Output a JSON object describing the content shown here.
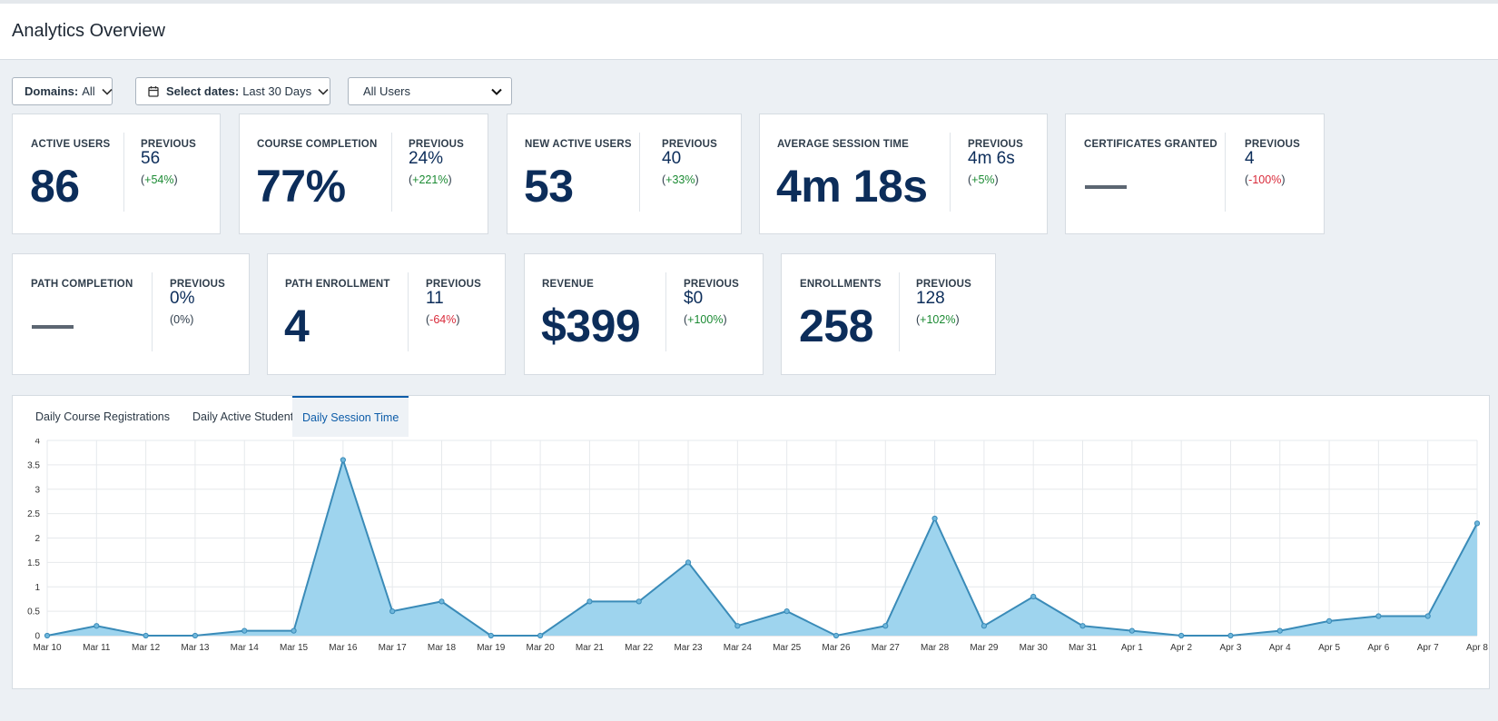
{
  "header": {
    "title": "Analytics Overview"
  },
  "filters": {
    "domains": {
      "label": "Domains:",
      "value": "All"
    },
    "dates": {
      "label": "Select dates:",
      "value": "Last 30 Days"
    },
    "users": {
      "value": "All Users"
    }
  },
  "cards": [
    {
      "label": "ACTIVE USERS",
      "value": "86",
      "prev_label": "PREVIOUS",
      "prev_value": "56",
      "change": "+54%",
      "trend": "pos"
    },
    {
      "label": "COURSE COMPLETION",
      "value": "77%",
      "prev_label": "PREVIOUS",
      "prev_value": "24%",
      "change": "+221%",
      "trend": "pos"
    },
    {
      "label": "NEW ACTIVE USERS",
      "value": "53",
      "prev_label": "PREVIOUS",
      "prev_value": "40",
      "change": "+33%",
      "trend": "pos"
    },
    {
      "label": "AVERAGE SESSION TIME",
      "value": "4m 18s",
      "prev_label": "PREVIOUS",
      "prev_value": "4m 6s",
      "change": "+5%",
      "trend": "pos"
    },
    {
      "label": "CERTIFICATES GRANTED",
      "value": "—",
      "prev_label": "PREVIOUS",
      "prev_value": "4",
      "change": "-100%",
      "trend": "neg"
    },
    {
      "label": "PATH COMPLETION",
      "value": "—",
      "prev_label": "PREVIOUS",
      "prev_value": "0%",
      "change": "0%",
      "trend": "none"
    },
    {
      "label": "PATH ENROLLMENT",
      "value": "4",
      "prev_label": "PREVIOUS",
      "prev_value": "11",
      "change": "-64%",
      "trend": "neg"
    },
    {
      "label": "REVENUE",
      "value": "$399",
      "prev_label": "PREVIOUS",
      "prev_value": "$0",
      "change": "+100%",
      "trend": "pos"
    },
    {
      "label": "ENROLLMENTS",
      "value": "258",
      "prev_label": "PREVIOUS",
      "prev_value": "128",
      "change": "+102%",
      "trend": "pos"
    }
  ],
  "tabs": [
    {
      "label": "Daily Course Registrations",
      "active": false
    },
    {
      "label": "Daily Active Students",
      "active": false
    },
    {
      "label": "Daily Session Time",
      "active": true
    }
  ],
  "colors": {
    "accent": "#0d5ca8",
    "value": "#0c2d5a",
    "positive": "#1b8a33",
    "negative": "#d92a3a",
    "area_fill": "#9ed4ee",
    "area_line": "#3a8bb8"
  },
  "icons": {
    "chevron": "chevron-down-icon",
    "calendar": "calendar-icon"
  },
  "chart_data": {
    "type": "area",
    "title": "",
    "xlabel": "",
    "ylabel": "",
    "ylim": [
      0,
      4
    ],
    "yticks": [
      "0",
      "0.5",
      "1",
      "1.5",
      "2",
      "2.5",
      "3",
      "3.5",
      "4"
    ],
    "grid": true,
    "x": [
      "Mar 10",
      "Mar 11",
      "Mar 12",
      "Mar 13",
      "Mar 14",
      "Mar 15",
      "Mar 16",
      "Mar 17",
      "Mar 18",
      "Mar 19",
      "Mar 20",
      "Mar 21",
      "Mar 22",
      "Mar 23",
      "Mar 24",
      "Mar 25",
      "Mar 26",
      "Mar 27",
      "Mar 28",
      "Mar 29",
      "Mar 30",
      "Mar 31",
      "Apr 1",
      "Apr 2",
      "Apr 3",
      "Apr 4",
      "Apr 5",
      "Apr 6",
      "Apr 7",
      "Apr 8"
    ],
    "series": [
      {
        "values": [
          0,
          0.2,
          0,
          0,
          0.1,
          0.1,
          3.6,
          0.5,
          0.7,
          0,
          0,
          0.7,
          0.7,
          1.5,
          0.2,
          0.5,
          0,
          0.2,
          2.4,
          0.2,
          0.8,
          0.2,
          0.1,
          0,
          0,
          0.1,
          0.3,
          0.4,
          0.4,
          2.3
        ]
      }
    ]
  }
}
